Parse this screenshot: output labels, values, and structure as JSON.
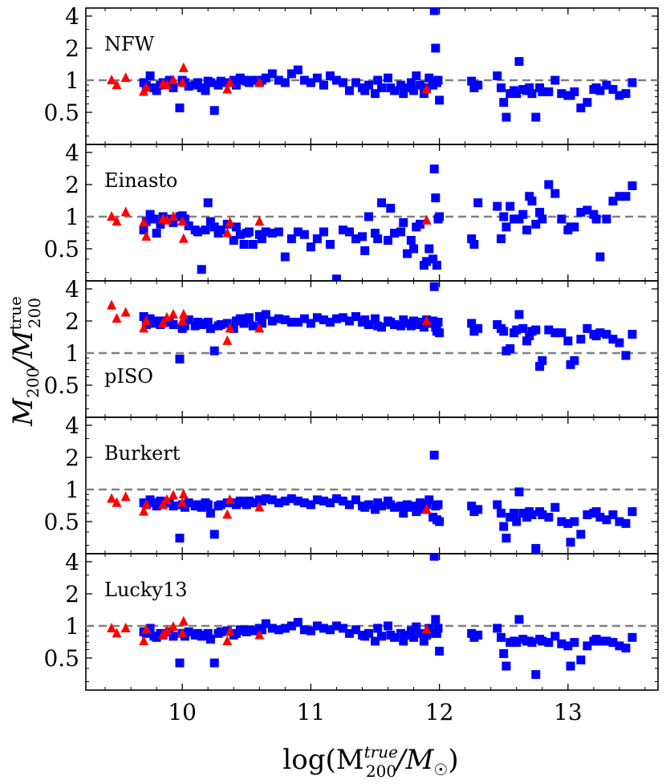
{
  "chart_data": {
    "type": "scatter",
    "layout": "5 vertically stacked panels sharing the x axis",
    "xlabel_text": "log(M",
    "xlabel_sub": "200",
    "xlabel_sup": "true",
    "xlabel_tail": "/M",
    "xlabel_sun": "☉",
    "xlabel_close": ")",
    "ylabel_text": "M",
    "ylabel_sub": "200",
    "ylabel_slash": "/M",
    "ylabel_sub2": "200",
    "ylabel_sup2": "true",
    "xlim": [
      9.25,
      13.7
    ],
    "ylim_log2": [
      -2.0,
      2.25
    ],
    "x_ticks": [
      10,
      11,
      12,
      13
    ],
    "x_tick_labels": [
      "10",
      "11",
      "12",
      "13"
    ],
    "y_ticks": [
      0.5,
      1,
      2,
      4
    ],
    "y_tick_labels": [
      "0.5",
      "1",
      "2",
      "4"
    ],
    "reference_line": 1,
    "colors": {
      "square_series": "#0000ff",
      "triangle_series": "#ff0000",
      "reference": "#808080"
    },
    "triangles_x": [
      9.45,
      9.49,
      9.56,
      9.7,
      9.72,
      9.85,
      9.88,
      9.93,
      10.0,
      10.01,
      10.35,
      10.37,
      10.6,
      11.9
    ],
    "squares_x": [
      9.7,
      9.72,
      9.75,
      9.78,
      9.8,
      9.83,
      9.85,
      9.9,
      9.93,
      9.98,
      10.0,
      10.02,
      10.05,
      10.1,
      10.12,
      10.15,
      10.18,
      10.2,
      10.22,
      10.25,
      10.28,
      10.3,
      10.35,
      10.4,
      10.42,
      10.45,
      10.48,
      10.5,
      10.52,
      10.55,
      10.6,
      10.62,
      10.65,
      10.7,
      10.75,
      10.8,
      10.85,
      10.9,
      10.95,
      11.0,
      11.05,
      11.1,
      11.15,
      11.2,
      11.25,
      11.3,
      11.35,
      11.4,
      11.42,
      11.45,
      11.5,
      11.52,
      11.55,
      11.6,
      11.62,
      11.65,
      11.7,
      11.72,
      11.75,
      11.78,
      11.8,
      11.82,
      11.85,
      11.88,
      11.9,
      11.92,
      11.95,
      11.96,
      11.97,
      11.98,
      11.99,
      12.0,
      12.25,
      12.27,
      12.3,
      12.45,
      12.48,
      12.5,
      12.52,
      12.55,
      12.58,
      12.6,
      12.62,
      12.65,
      12.68,
      12.7,
      12.72,
      12.75,
      12.78,
      12.8,
      12.85,
      12.9,
      12.95,
      13.0,
      13.02,
      13.05,
      13.1,
      13.15,
      13.2,
      13.22,
      13.25,
      13.3,
      13.35,
      13.4,
      13.45,
      13.5
    ],
    "panels": [
      {
        "label": "NFW",
        "triangles_y": [
          1.0,
          0.9,
          1.05,
          0.78,
          0.85,
          0.92,
          0.9,
          1.0,
          0.95,
          1.3,
          0.82,
          0.95,
          0.95,
          0.82
        ],
        "squares_y": [
          0.95,
          0.9,
          1.1,
          0.85,
          0.8,
          0.9,
          0.95,
          1.0,
          0.85,
          0.55,
          1.0,
          0.95,
          0.88,
          0.9,
          0.95,
          0.85,
          0.8,
          0.98,
          0.95,
          0.52,
          0.9,
          0.98,
          0.95,
          1.0,
          0.9,
          1.05,
          1.0,
          0.98,
          0.95,
          1.0,
          0.95,
          1.0,
          1.05,
          1.15,
          1.0,
          0.95,
          1.15,
          1.25,
          1.0,
          0.95,
          1.05,
          0.9,
          1.1,
          1.0,
          0.95,
          0.8,
          0.95,
          0.85,
          0.8,
          0.9,
          0.75,
          1.0,
          0.85,
          1.05,
          0.85,
          0.8,
          0.9,
          0.75,
          0.85,
          0.95,
          0.8,
          1.1,
          0.9,
          0.75,
          0.85,
          1.05,
          0.9,
          4.5,
          2.0,
          0.95,
          1.0,
          0.65,
          0.98,
          0.85,
          0.9,
          1.1,
          0.85,
          0.62,
          0.45,
          0.75,
          0.8,
          0.75,
          1.5,
          0.82,
          0.8,
          0.85,
          0.75,
          0.45,
          0.85,
          0.78,
          0.78,
          1.0,
          0.75,
          0.72,
          0.72,
          0.78,
          0.55,
          0.62,
          0.82,
          0.85,
          0.8,
          0.9,
          0.82,
          0.72,
          0.75,
          0.95
        ]
      },
      {
        "label": "Einasto",
        "triangles_y": [
          1.0,
          0.9,
          1.1,
          0.88,
          0.65,
          0.95,
          0.92,
          1.0,
          0.9,
          0.62,
          0.7,
          0.88,
          0.9,
          0.92
        ],
        "squares_y": [
          0.75,
          0.9,
          1.05,
          0.95,
          0.7,
          0.85,
          1.0,
          0.95,
          0.88,
          1.0,
          1.02,
          0.95,
          0.82,
          0.75,
          0.72,
          0.32,
          0.75,
          1.35,
          0.9,
          0.8,
          0.7,
          0.75,
          0.85,
          0.6,
          0.8,
          0.68,
          0.55,
          0.7,
          0.72,
          0.55,
          0.68,
          0.62,
          0.72,
          0.7,
          0.72,
          0.42,
          0.62,
          0.72,
          0.68,
          0.52,
          0.62,
          0.72,
          0.55,
          0.26,
          0.75,
          0.72,
          0.62,
          0.65,
          0.48,
          1.0,
          0.7,
          0.62,
          1.35,
          0.6,
          1.2,
          0.7,
          0.72,
          0.88,
          0.45,
          0.6,
          0.5,
          0.8,
          0.85,
          0.35,
          0.38,
          0.5,
          0.4,
          2.8,
          1.5,
          0.35,
          0.95,
          1.0,
          0.62,
          0.55,
          1.35,
          1.25,
          0.62,
          1.0,
          0.8,
          1.25,
          0.95,
          0.95,
          0.95,
          1.05,
          0.75,
          1.55,
          1.4,
          0.85,
          1.1,
          0.95,
          2.0,
          1.65,
          0.95,
          0.75,
          0.8,
          0.8,
          1.1,
          1.15,
          1.05,
          0.95,
          0.42,
          0.95,
          1.4,
          1.55,
          1.55,
          1.95
        ]
      },
      {
        "label": "pISO",
        "triangles_y": [
          2.8,
          2.1,
          2.4,
          1.7,
          2.0,
          1.9,
          2.15,
          2.3,
          2.0,
          2.3,
          1.3,
          1.7,
          1.7,
          2.0
        ],
        "squares_y": [
          2.2,
          1.85,
          2.1,
          1.9,
          2.0,
          1.85,
          2.0,
          1.95,
          1.85,
          0.88,
          1.7,
          1.8,
          2.05,
          1.8,
          1.95,
          1.85,
          1.9,
          1.95,
          1.7,
          1.05,
          1.8,
          1.85,
          1.9,
          1.7,
          2.0,
          2.1,
          1.9,
          2.1,
          2.15,
          1.8,
          2.2,
          1.9,
          2.3,
          2.0,
          2.1,
          2.05,
          1.95,
          1.95,
          2.1,
          1.9,
          2.15,
          2.05,
          1.95,
          2.1,
          2.15,
          2.0,
          2.2,
          1.95,
          2.05,
          1.85,
          2.1,
          1.8,
          1.75,
          2.0,
          1.95,
          1.85,
          1.8,
          2.05,
          1.9,
          1.8,
          2.0,
          1.85,
          1.95,
          1.75,
          2.05,
          1.9,
          2.0,
          4.2,
          1.75,
          1.6,
          1.95,
          1.55,
          1.9,
          1.6,
          1.7,
          1.85,
          1.7,
          1.6,
          1.05,
          1.1,
          1.55,
          1.65,
          2.3,
          1.7,
          1.3,
          1.45,
          1.6,
          1.65,
          0.75,
          0.85,
          1.65,
          1.55,
          1.55,
          1.3,
          0.78,
          0.85,
          1.35,
          1.7,
          1.5,
          1.45,
          1.55,
          1.5,
          1.35,
          1.25,
          0.95,
          1.5
        ]
      },
      {
        "label": "Burkert",
        "triangles_y": [
          0.82,
          0.75,
          0.85,
          0.62,
          0.72,
          0.72,
          0.8,
          0.88,
          0.75,
          0.9,
          0.58,
          0.8,
          0.68,
          0.65
        ],
        "squares_y": [
          0.75,
          0.72,
          0.8,
          0.75,
          0.7,
          0.78,
          0.72,
          0.75,
          0.7,
          0.35,
          0.72,
          0.68,
          0.75,
          0.7,
          0.72,
          0.68,
          0.75,
          0.72,
          0.6,
          0.38,
          0.7,
          0.72,
          0.75,
          0.75,
          0.72,
          0.78,
          0.75,
          0.72,
          0.78,
          0.75,
          0.8,
          0.78,
          0.82,
          0.8,
          0.75,
          0.78,
          0.82,
          0.78,
          0.75,
          0.72,
          0.8,
          0.78,
          0.75,
          0.82,
          0.78,
          0.72,
          0.8,
          0.7,
          0.68,
          0.72,
          0.65,
          0.75,
          0.7,
          0.78,
          0.72,
          0.68,
          0.7,
          0.6,
          0.72,
          0.68,
          0.7,
          0.62,
          0.75,
          0.65,
          0.72,
          0.8,
          0.55,
          2.1,
          0.7,
          0.52,
          0.72,
          0.5,
          0.7,
          0.62,
          0.65,
          0.72,
          0.6,
          0.45,
          0.35,
          0.55,
          0.6,
          0.5,
          0.95,
          0.6,
          0.55,
          0.62,
          0.58,
          0.28,
          0.62,
          0.58,
          0.55,
          0.68,
          0.5,
          0.48,
          0.32,
          0.5,
          0.38,
          0.58,
          0.6,
          0.62,
          0.55,
          0.52,
          0.58,
          0.5,
          0.48,
          0.62
        ]
      },
      {
        "label": "Lucky13",
        "triangles_y": [
          0.95,
          0.85,
          0.95,
          0.72,
          0.92,
          0.82,
          0.9,
          0.98,
          0.85,
          1.1,
          0.72,
          0.88,
          0.82,
          0.92
        ],
        "squares_y": [
          0.88,
          0.85,
          0.95,
          0.8,
          0.78,
          0.85,
          0.82,
          0.88,
          0.8,
          0.45,
          0.85,
          0.8,
          0.88,
          0.82,
          0.85,
          0.8,
          0.82,
          0.85,
          0.75,
          0.45,
          0.85,
          0.88,
          0.9,
          0.82,
          0.85,
          0.92,
          0.9,
          0.88,
          0.92,
          0.9,
          0.95,
          0.92,
          1.05,
          0.95,
          0.92,
          0.95,
          1.0,
          1.08,
          0.92,
          0.9,
          1.0,
          0.95,
          0.92,
          1.0,
          0.95,
          0.85,
          0.92,
          0.82,
          0.8,
          0.85,
          0.72,
          0.95,
          0.8,
          1.0,
          0.82,
          0.78,
          0.85,
          0.72,
          0.82,
          0.9,
          0.78,
          0.98,
          0.85,
          0.72,
          0.82,
          0.95,
          0.85,
          4.5,
          1.15,
          0.85,
          0.95,
          0.58,
          0.85,
          0.78,
          0.82,
          0.95,
          0.78,
          0.55,
          0.42,
          0.7,
          0.72,
          0.7,
          1.15,
          0.75,
          0.72,
          0.72,
          0.7,
          0.35,
          0.75,
          0.72,
          0.7,
          0.8,
          0.68,
          0.65,
          0.42,
          0.7,
          0.48,
          0.65,
          0.72,
          0.75,
          0.72,
          0.72,
          0.7,
          0.65,
          0.62,
          0.78
        ]
      }
    ]
  }
}
